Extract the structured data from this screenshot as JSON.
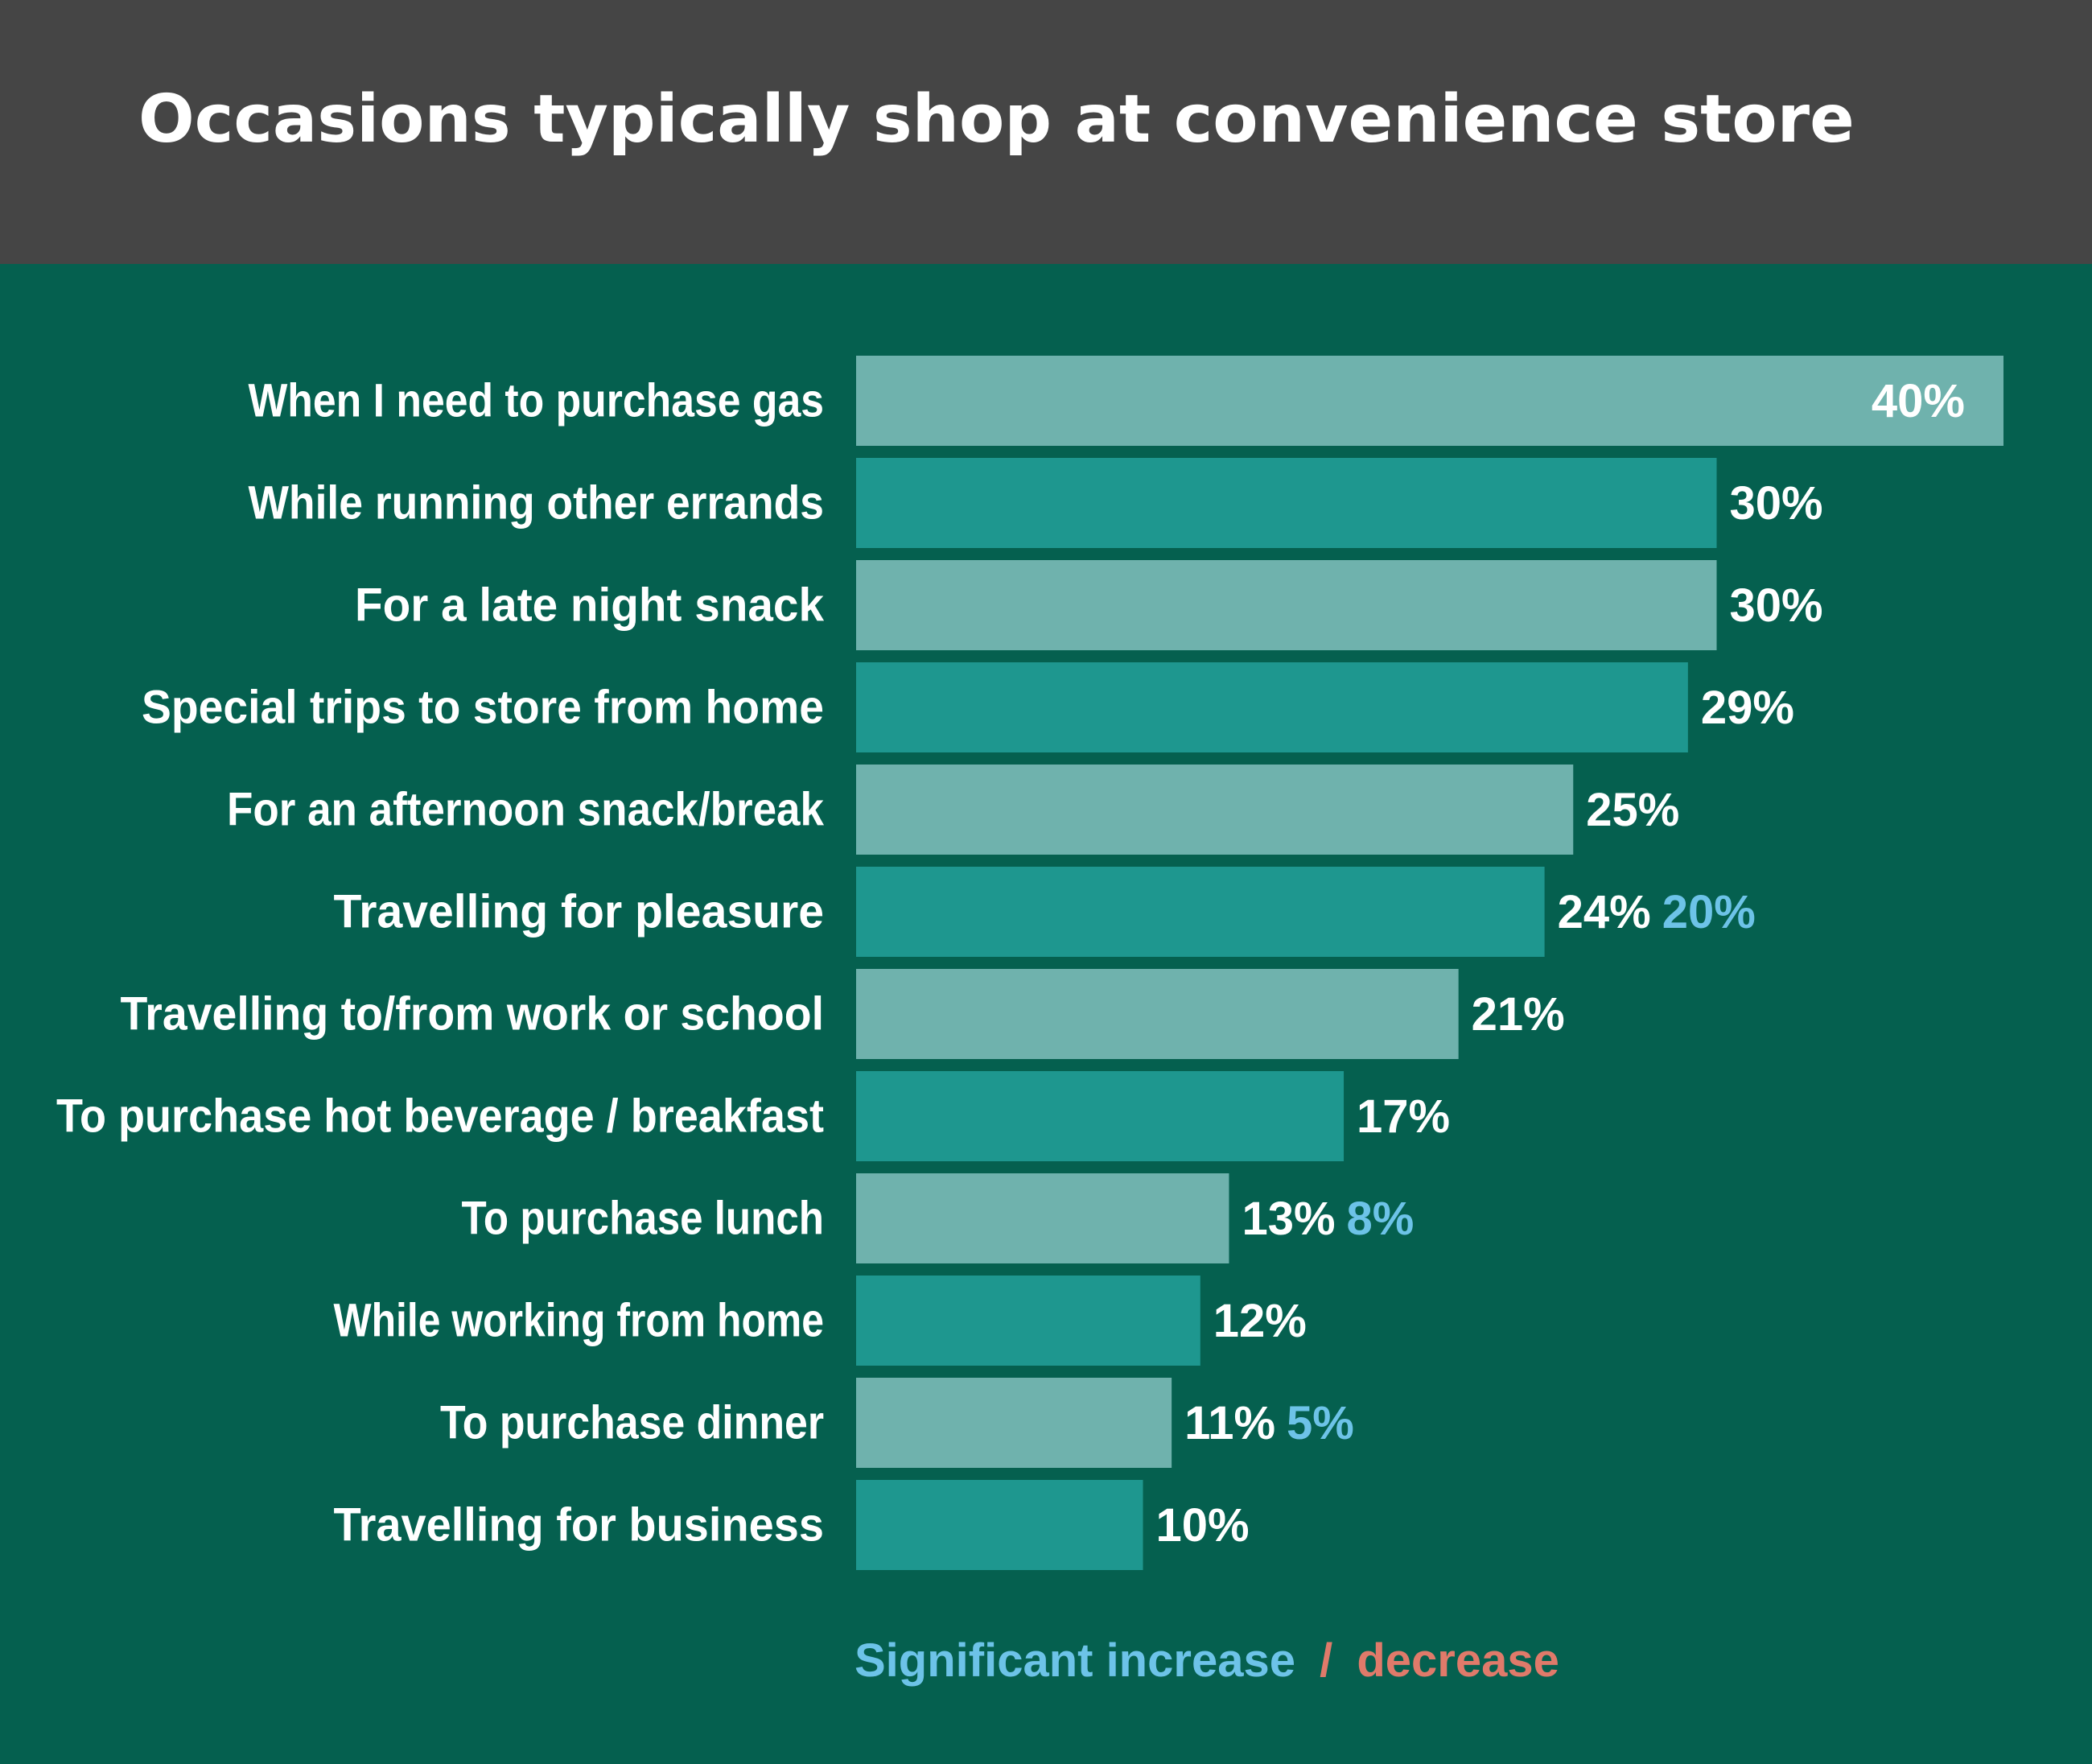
{
  "title": "Occasions typically shop at convenience store",
  "colors": {
    "header_bg": "#454545",
    "panel_bg": "#05604F",
    "bar_light": "#6FB2AD",
    "bar_dark": "#1E978F",
    "text": "#FFFFFF",
    "increase": "#6DC3E8",
    "decrease": "#E07A6A"
  },
  "legend": {
    "increase_label": "Significant increase",
    "separator": "/",
    "decrease_label": "decrease"
  },
  "chart_data": {
    "type": "bar",
    "orientation": "horizontal",
    "categories": [
      "When I need to purchase gas",
      "While running other errands",
      "For a late night snack",
      "Special trips to store from home",
      "For an afternoon snack/break",
      "Travelling for pleasure",
      "Travelling to/from work or school",
      "To purchase hot beverage / breakfast",
      "To purchase lunch",
      "While working from home",
      "To purchase dinner",
      "Travelling for business"
    ],
    "values": [
      40,
      30,
      30,
      29,
      25,
      24,
      21,
      17,
      13,
      12,
      11,
      10
    ],
    "value_labels": [
      "40%",
      "30%",
      "30%",
      "29%",
      "25%",
      "24%",
      "21%",
      "17%",
      "13%",
      "12%",
      "11%",
      "10%"
    ],
    "comparison_labels": [
      "",
      "",
      "",
      "",
      "",
      "20%",
      "",
      "",
      "8%",
      "",
      "5%",
      ""
    ],
    "comparison_type": [
      "",
      "",
      "",
      "",
      "",
      "increase",
      "",
      "",
      "increase",
      "",
      "increase",
      ""
    ],
    "xlim": [
      0,
      40
    ],
    "grid": false,
    "legend_position": "bottom-center"
  }
}
